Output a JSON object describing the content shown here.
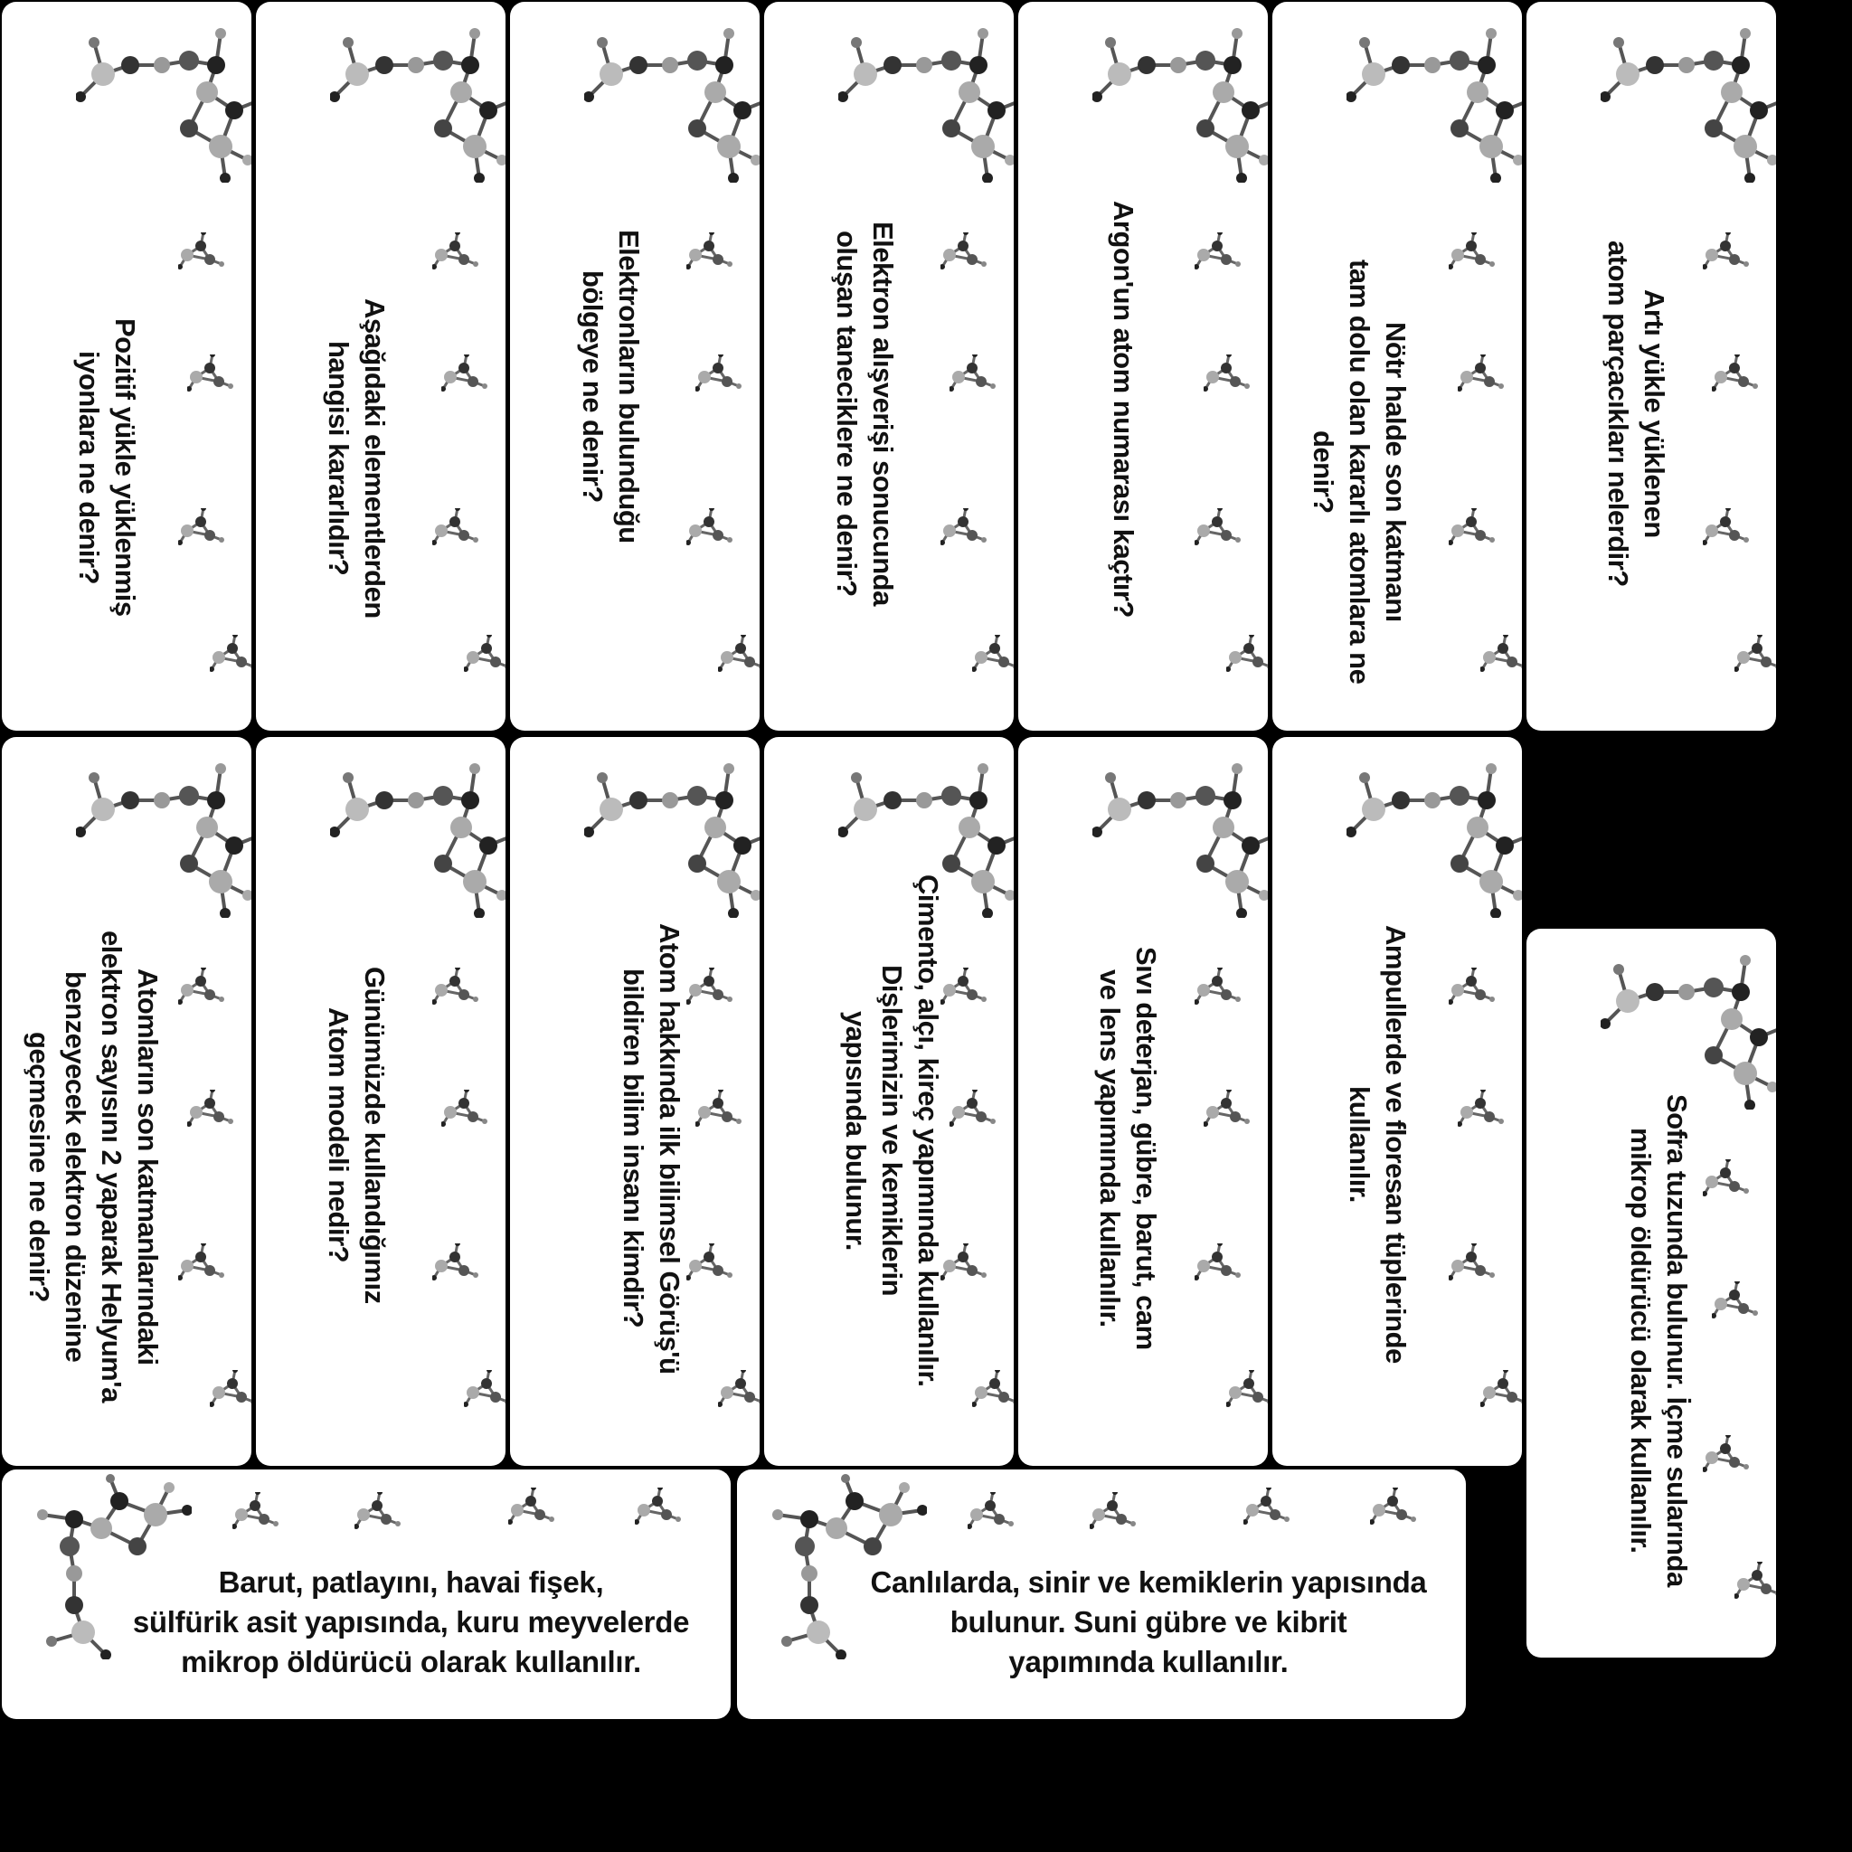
{
  "cards": {
    "c1": "Pozitif yükle yüklenmiş\niyonlara ne denir?",
    "c2": "Aşağıdaki elementlerden\nhangisi kararlıdır?",
    "c3": "Elektronların bulunduğu\nbölgeye ne denir?",
    "c4": "Elektron alışverişi sonucunda\noluşan taneciklere ne denir?",
    "c5": "Argon'un atom numarası kaçtır?",
    "c6": "Nötr halde son katmanı\ntam dolu olan kararlı atomlara ne denir?",
    "c7": "Artı yükle yüklenen\natom parçacıkları nelerdir?",
    "c8": "Atomların son katmanlarındaki\nelektron sayısını 2 yaparak Helyum'a\nbenzeyecek elektron düzenine\ngeçmesine ne denir?",
    "c9": "Günümüzde kullandığımız\nAtom modeli nedir?",
    "c10": "Atom hakkında ilk bilimsel Görüş'ü\nbildiren bilim insanı kimdir?",
    "c11": "Çimento, alçı, kireç yapımında kullanılır.\nDişlerimizin ve kemiklerin\nyapısında bulunur.",
    "c12": "Sıvı deterjan, gübre, barut, cam\nve lens yapımında kullanılır.",
    "c13": "Ampullerde ve floresan tüplerinde\nkullanılır.",
    "c14": "Sofra tuzunda bulunur. İçme sularında\nmikrop öldürücü olarak kullanılır.",
    "c15": "Barut, patlayını, havai fişek,\nsülfürik asit yapısında, kuru meyvelerde\nmikrop öldürücü olarak kullanılır.",
    "c16": "Canlılarda, sinir ve kemiklerin yapısında\nbulunur. Suni gübre ve kibrit\nyapımında kullanılır."
  },
  "icons": {
    "decoration": "molecule-icon"
  }
}
